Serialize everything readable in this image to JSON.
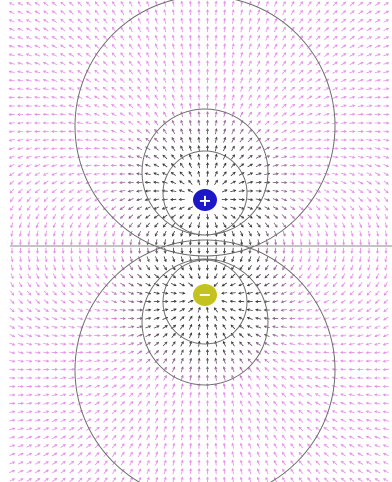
{
  "diagram": {
    "kind": "electric-field-dipole",
    "background_color": "#ffffff",
    "arrow_color_far": "#e58ae8",
    "arrow_color_near": "#333333",
    "equipotential_color": "#6e6e6e",
    "axis_color": "#8a8a8a",
    "charges": [
      {
        "sign": "+",
        "symbol": "+",
        "color": "#1c18c8",
        "label_color": "#ffffff"
      },
      {
        "sign": "-",
        "symbol": "−",
        "color": "#c4c21c",
        "label_color": "#ffffff"
      }
    ],
    "equipotential_rings_per_charge": 3,
    "show_axis_line": true
  }
}
